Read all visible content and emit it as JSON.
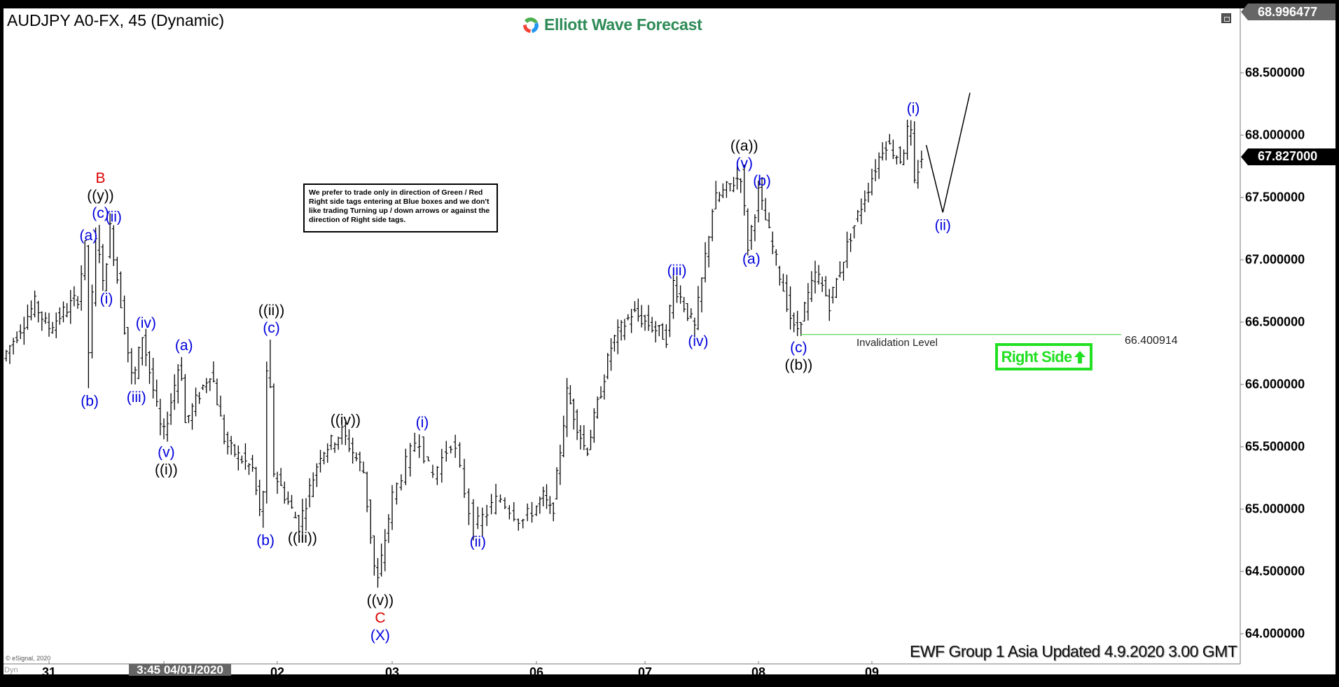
{
  "header": {
    "title": "AUDJPY A0-FX, 45 (Dynamic)",
    "logo_text": "Elliott Wave Forecast"
  },
  "note": "We prefer to trade only in direction of Green / Red Right side tags entering at Blue boxes and we don't like trading Turning up / down arrows or against the direction of Right side tags.",
  "right_side": {
    "label": "Right Side",
    "icon": "arrow-up-icon",
    "color": "#22e022"
  },
  "invalidation": {
    "label": "Invalidation Level",
    "value": "66.400914",
    "price": 66.400914,
    "color": "#55dd55"
  },
  "footer": "EWF Group 1 Asia Updated 4.9.2020 3.00 GMT",
  "copyright": "© eSignal, 2020",
  "axis_left_label": "Dyn",
  "colors": {
    "bars": "#000000",
    "wave_black": "#000000",
    "wave_blue": "#0000dd",
    "wave_red": "#dd0000"
  },
  "chart_data": {
    "type": "ohlc-bar",
    "symbol": "AUDJPY A0-FX",
    "interval": "45",
    "ylim": [
      63.9,
      68.996477
    ],
    "y_ticks": [
      "68.500000",
      "68.000000",
      "67.500000",
      "67.000000",
      "66.500000",
      "66.000000",
      "65.500000",
      "65.000000",
      "64.500000",
      "64.000000"
    ],
    "top_price": "68.996477",
    "last_price": "67.827000",
    "x_ticks": [
      {
        "label": "31",
        "date": "03/31"
      },
      {
        "label": "3:45 04/01/2020",
        "date": "04/01",
        "cursor": true
      },
      {
        "label": "02",
        "date": "04/02"
      },
      {
        "label": "03",
        "date": "04/03"
      },
      {
        "label": "06",
        "date": "04/06"
      },
      {
        "label": "07",
        "date": "04/07"
      },
      {
        "label": "08",
        "date": "04/08"
      },
      {
        "label": "09",
        "date": "04/09"
      }
    ],
    "pivots": [
      {
        "t": "03/30 15:00",
        "p": 66.21
      },
      {
        "t": "03/30 21:45",
        "p": 66.65
      },
      {
        "t": "03/31 00:30",
        "p": 66.45
      },
      {
        "t": "03/31 06:45",
        "p": 66.7
      },
      {
        "t": "03/31 08:15",
        "p": 67.1,
        "labels": [
          {
            "text": "(a)",
            "c": "blue"
          }
        ]
      },
      {
        "t": "03/31 08:30",
        "p": 65.97,
        "labels": [
          {
            "text": "(b)",
            "c": "blue"
          }
        ]
      },
      {
        "t": "03/31 10:45",
        "p": 67.28,
        "labels": [
          {
            "text": "(c)",
            "c": "blue"
          },
          {
            "text": "((y))",
            "c": "black"
          },
          {
            "text": "B",
            "c": "red"
          }
        ]
      },
      {
        "t": "03/31 12:00",
        "p": 66.79,
        "labels": [
          {
            "text": "(i)",
            "c": "blue"
          }
        ]
      },
      {
        "t": "03/31 13:30",
        "p": 67.25,
        "labels": [
          {
            "text": "(ii)",
            "c": "blue"
          }
        ]
      },
      {
        "t": "03/31 18:15",
        "p": 66.0,
        "labels": [
          {
            "text": "(iii)",
            "c": "blue"
          }
        ]
      },
      {
        "t": "03/31 20:15",
        "p": 66.4,
        "labels": [
          {
            "text": "(iv)",
            "c": "blue"
          }
        ]
      },
      {
        "t": "04/01 00:30",
        "p": 65.56,
        "labels": [
          {
            "text": "(v)",
            "c": "blue"
          },
          {
            "text": "((i))",
            "c": "black"
          }
        ]
      },
      {
        "t": "04/01 04:15",
        "p": 66.22,
        "labels": [
          {
            "text": "(a)",
            "c": "blue"
          }
        ]
      },
      {
        "t": "04/01 05:15",
        "p": 65.69
      },
      {
        "t": "04/01 10:45",
        "p": 66.12
      },
      {
        "t": "04/01 13:45",
        "p": 65.52
      },
      {
        "t": "04/01 19:30",
        "p": 65.32
      },
      {
        "t": "04/01 21:30",
        "p": 64.85,
        "labels": [
          {
            "text": "(b)",
            "c": "blue"
          }
        ]
      },
      {
        "t": "04/01 22:45",
        "p": 66.36,
        "labels": [
          {
            "text": "(c)",
            "c": "blue"
          },
          {
            "text": "((ii))",
            "c": "black"
          }
        ]
      },
      {
        "t": "04/02 00:00",
        "p": 65.3
      },
      {
        "t": "04/02 05:15",
        "p": 64.87,
        "labels": [
          {
            "text": "((iii))",
            "c": "black"
          }
        ]
      },
      {
        "t": "04/02 09:45",
        "p": 65.45
      },
      {
        "t": "04/02 14:15",
        "p": 65.62,
        "labels": [
          {
            "text": "((iv))",
            "c": "black"
          }
        ]
      },
      {
        "t": "04/02 18:45",
        "p": 65.3
      },
      {
        "t": "04/02 21:30",
        "p": 64.37,
        "labels": [
          {
            "text": "((v))",
            "c": "black"
          },
          {
            "text": "C",
            "c": "red"
          },
          {
            "text": "(X)",
            "c": "blue"
          }
        ]
      },
      {
        "t": "04/03 00:45",
        "p": 65.1
      },
      {
        "t": "04/03 05:00",
        "p": 65.6,
        "labels": [
          {
            "text": "(i)",
            "c": "blue"
          }
        ]
      },
      {
        "t": "04/03 07:15",
        "p": 65.25
      },
      {
        "t": "04/03 10:45",
        "p": 65.56
      },
      {
        "t": "04/03 14:15",
        "p": 64.84,
        "labels": [
          {
            "text": "(ii)",
            "c": "blue"
          }
        ]
      },
      {
        "t": "04/03 18:30",
        "p": 65.1
      },
      {
        "t": "04/03 22:15",
        "p": 64.9
      },
      {
        "t": "04/06 02:15",
        "p": 65.1
      },
      {
        "t": "04/06 04:15",
        "p": 64.95
      },
      {
        "t": "04/06 07:30",
        "p": 65.93
      },
      {
        "t": "04/06 11:45",
        "p": 65.45
      },
      {
        "t": "04/06 17:30",
        "p": 66.34
      },
      {
        "t": "04/06 22:00",
        "p": 66.58
      },
      {
        "t": "04/07 05:15",
        "p": 66.38
      },
      {
        "t": "04/07 06:45",
        "p": 66.82,
        "labels": [
          {
            "text": "(iii)",
            "c": "blue"
          }
        ]
      },
      {
        "t": "04/07 11:15",
        "p": 66.45,
        "labels": [
          {
            "text": "(iv)",
            "c": "blue"
          }
        ]
      },
      {
        "t": "04/07 15:15",
        "p": 67.47
      },
      {
        "t": "04/07 21:00",
        "p": 67.68,
        "labels": [
          {
            "text": "(v)",
            "c": "blue"
          },
          {
            "text": "((a))",
            "c": "black"
          }
        ]
      },
      {
        "t": "04/07 22:30",
        "p": 67.11,
        "labels": [
          {
            "text": "(a)",
            "c": "blue"
          }
        ]
      },
      {
        "t": "04/08 00:45",
        "p": 67.54,
        "labels": [
          {
            "text": "(b)",
            "c": "blue"
          }
        ]
      },
      {
        "t": "04/08 08:30",
        "p": 66.4,
        "labels": [
          {
            "text": "(c)",
            "c": "blue"
          },
          {
            "text": "((b))",
            "c": "black"
          }
        ]
      },
      {
        "t": "04/08 13:00",
        "p": 66.9
      },
      {
        "t": "04/08 15:45",
        "p": 66.65
      },
      {
        "t": "04/08 20:15",
        "p": 67.2
      },
      {
        "t": "04/09 03:30",
        "p": 67.95
      },
      {
        "t": "04/09 07:00",
        "p": 67.8
      },
      {
        "t": "04/09 08:45",
        "p": 68.12,
        "labels": [
          {
            "text": "(i)",
            "c": "blue"
          }
        ]
      },
      {
        "t": "04/09 09:45",
        "p": 67.6
      },
      {
        "t": "04/09 11:00",
        "p": 67.827
      }
    ],
    "projection": [
      {
        "t": "04/09 11:30",
        "p": 67.92
      },
      {
        "t": "04/09 15:00",
        "p": 67.38,
        "labels": [
          {
            "text": "(ii)",
            "c": "blue"
          }
        ]
      },
      {
        "t": "04/09 20:45",
        "p": 68.34
      }
    ]
  }
}
